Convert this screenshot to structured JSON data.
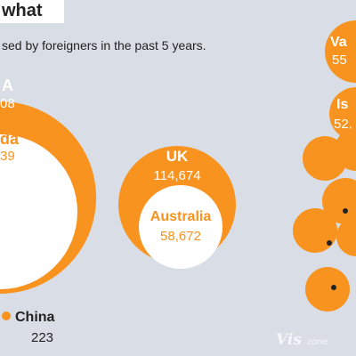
{
  "header": {
    "title": "what",
    "subtitle": "sed by foreigners in the past 5 years."
  },
  "watermark": {
    "main": "Vis",
    "suffix": "zone"
  },
  "chart_data": {
    "type": "bubble",
    "title": "what",
    "subtitle": "sed by foreigners in the past 5 years.",
    "series": [
      {
        "name": "A",
        "value_text": "08",
        "value": null,
        "color": "#f7931e",
        "ring": "outer"
      },
      {
        "name": "da",
        "value_text": "39",
        "value": null,
        "color": "#ffffff",
        "ring": "inner"
      },
      {
        "name": "UK",
        "value_text": "114,674",
        "value": 114674,
        "color": "#f7931e",
        "ring": "outer"
      },
      {
        "name": "Australia",
        "value_text": "58,672",
        "value": 58672,
        "color": "#ffffff",
        "ring": "inner"
      },
      {
        "name": "Va",
        "value_text": "55",
        "value": null,
        "color": "#f7931e",
        "ring": "outer"
      },
      {
        "name": "Is",
        "value_text": "52,",
        "value": null,
        "color": "#f7931e",
        "ring": "outer"
      },
      {
        "name": "China",
        "value_text": "223",
        "value": 223,
        "color": "#f7931e",
        "ring": "dot"
      }
    ],
    "unlabeled_markers": 5,
    "colors": {
      "orange": "#f7931e",
      "inner": "#ffffff",
      "background": "#d9dee6",
      "marker_dot": "#222222"
    }
  }
}
